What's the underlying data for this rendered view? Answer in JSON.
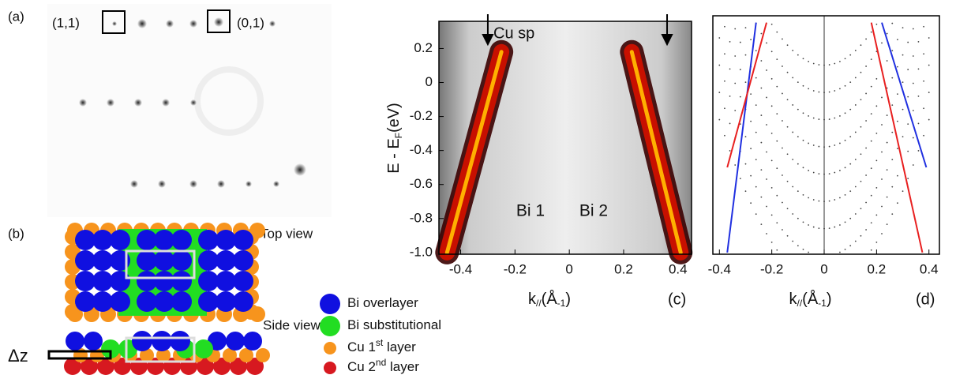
{
  "panel_a": {
    "label": "(a)",
    "spot_labels": [
      "(1,1)",
      "(0,1)"
    ]
  },
  "panel_b": {
    "label": "(b)",
    "top_view": "Top view",
    "side_view": "Side view",
    "dz": "Δz"
  },
  "legend": [
    {
      "parts": [
        "Bi overlayer"
      ],
      "color": "#1010e0"
    },
    {
      "parts": [
        "Bi substitutional"
      ],
      "color": "#22dd22"
    },
    {
      "parts": [
        "Cu 1",
        "st",
        " layer"
      ],
      "color": "#f7941d"
    },
    {
      "parts": [
        "Cu 2",
        "nd",
        " layer"
      ],
      "color": "#d71920"
    }
  ],
  "chart_data": [
    {
      "type": "line",
      "panel": "(c)",
      "y_label": [
        "E - E",
        "F",
        "(eV)"
      ],
      "x_label": [
        "k",
        "//",
        "(Å",
        "-1",
        ")"
      ],
      "annotation": "Cu sp",
      "annotation_color": "#22dd22",
      "arrows_x": [
        -0.3,
        0.36
      ],
      "xlim": [
        -0.48,
        0.45
      ],
      "ylim": [
        -1.01,
        0.36
      ],
      "xticks": [
        -0.4,
        -0.2,
        0,
        0.2,
        0.4
      ],
      "yticks": [
        0.2,
        0,
        -0.2,
        -0.4,
        -0.6,
        -0.8,
        {
          "value": -1,
          "label": "-1.0"
        }
      ],
      "series": [
        {
          "name": "Bi 1",
          "color": "#2020d0",
          "x": [
            -0.45,
            -0.25
          ],
          "values": [
            -1.0,
            0.18
          ]
        },
        {
          "name": "Bi 2",
          "color": "#e01010",
          "x": [
            0.23,
            0.41
          ],
          "values": [
            0.18,
            -1.0
          ]
        }
      ]
    },
    {
      "type": "line",
      "panel": "(d)",
      "x_label": [
        "k",
        "//",
        "(Å",
        "-1",
        ")"
      ],
      "xlim": [
        -0.425,
        0.44
      ],
      "ylim": [
        -1.01,
        0.39
      ],
      "xticks": [
        -0.4,
        -0.2,
        0,
        0.2,
        0.4
      ],
      "series": [
        {
          "color": "#2030e0",
          "x": [
            -0.37,
            -0.26,
            null,
            0.22,
            0.39
          ],
          "values": [
            -1.0,
            0.35,
            null,
            0.35,
            -0.5
          ]
        },
        {
          "color": "#e82020",
          "x": [
            -0.37,
            -0.22,
            null,
            0.18,
            0.375
          ],
          "values": [
            -0.5,
            0.35,
            null,
            0.35,
            -1.0
          ]
        }
      ]
    }
  ]
}
